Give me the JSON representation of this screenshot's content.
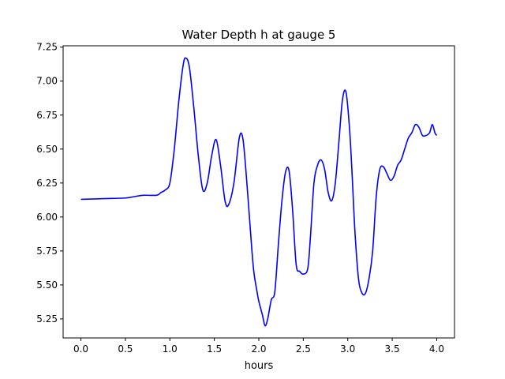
{
  "chart_data": {
    "type": "line",
    "title": "Water Depth h at gauge 5",
    "xlabel": "hours",
    "ylabel": "",
    "xlim": [
      -0.2,
      4.2
    ],
    "ylim": [
      5.11,
      7.26
    ],
    "xticks": [
      0.0,
      0.5,
      1.0,
      1.5,
      2.0,
      2.5,
      3.0,
      3.5,
      4.0
    ],
    "xtick_labels": [
      "0.0",
      "0.5",
      "1.0",
      "1.5",
      "2.0",
      "2.5",
      "3.0",
      "3.5",
      "4.0"
    ],
    "yticks": [
      5.25,
      5.5,
      5.75,
      6.0,
      6.25,
      6.5,
      6.75,
      7.0,
      7.25
    ],
    "ytick_labels": [
      "5.25",
      "5.50",
      "5.75",
      "6.00",
      "6.25",
      "6.50",
      "6.75",
      "7.00",
      "7.25"
    ],
    "grid": false,
    "series": [
      {
        "color": "#0000ff",
        "x": [
          0.0,
          0.25,
          0.5,
          0.6,
          0.7,
          0.85,
          0.9,
          0.95,
          1.0,
          1.05,
          1.1,
          1.15,
          1.18,
          1.22,
          1.27,
          1.32,
          1.37,
          1.42,
          1.47,
          1.52,
          1.57,
          1.62,
          1.66,
          1.72,
          1.78,
          1.82,
          1.86,
          1.9,
          1.94,
          1.98,
          2.0,
          2.04,
          2.07,
          2.1,
          2.14,
          2.18,
          2.22,
          2.26,
          2.3,
          2.34,
          2.38,
          2.42,
          2.46,
          2.5,
          2.55,
          2.58,
          2.62,
          2.66,
          2.7,
          2.74,
          2.78,
          2.82,
          2.86,
          2.9,
          2.94,
          2.98,
          3.02,
          3.05,
          3.08,
          3.12,
          3.16,
          3.2,
          3.24,
          3.28,
          3.32,
          3.36,
          3.4,
          3.44,
          3.48,
          3.52,
          3.56,
          3.6,
          3.64,
          3.68,
          3.72,
          3.76,
          3.8,
          3.84,
          3.88,
          3.92,
          3.95,
          3.98,
          4.0
        ],
        "y": [
          6.13,
          6.135,
          6.14,
          6.15,
          6.16,
          6.16,
          6.18,
          6.2,
          6.25,
          6.5,
          6.85,
          7.12,
          7.17,
          7.1,
          6.8,
          6.45,
          6.2,
          6.25,
          6.45,
          6.57,
          6.38,
          6.12,
          6.09,
          6.25,
          6.58,
          6.58,
          6.3,
          5.95,
          5.62,
          5.45,
          5.38,
          5.28,
          5.2,
          5.25,
          5.39,
          5.45,
          5.8,
          6.12,
          6.33,
          6.34,
          6.05,
          5.65,
          5.6,
          5.58,
          5.62,
          5.85,
          6.25,
          6.38,
          6.42,
          6.35,
          6.18,
          6.12,
          6.25,
          6.55,
          6.86,
          6.92,
          6.65,
          6.3,
          5.9,
          5.55,
          5.44,
          5.44,
          5.55,
          5.75,
          6.15,
          6.35,
          6.37,
          6.32,
          6.27,
          6.3,
          6.38,
          6.42,
          6.5,
          6.58,
          6.62,
          6.68,
          6.66,
          6.6,
          6.6,
          6.62,
          6.68,
          6.62,
          6.6
        ]
      }
    ]
  }
}
